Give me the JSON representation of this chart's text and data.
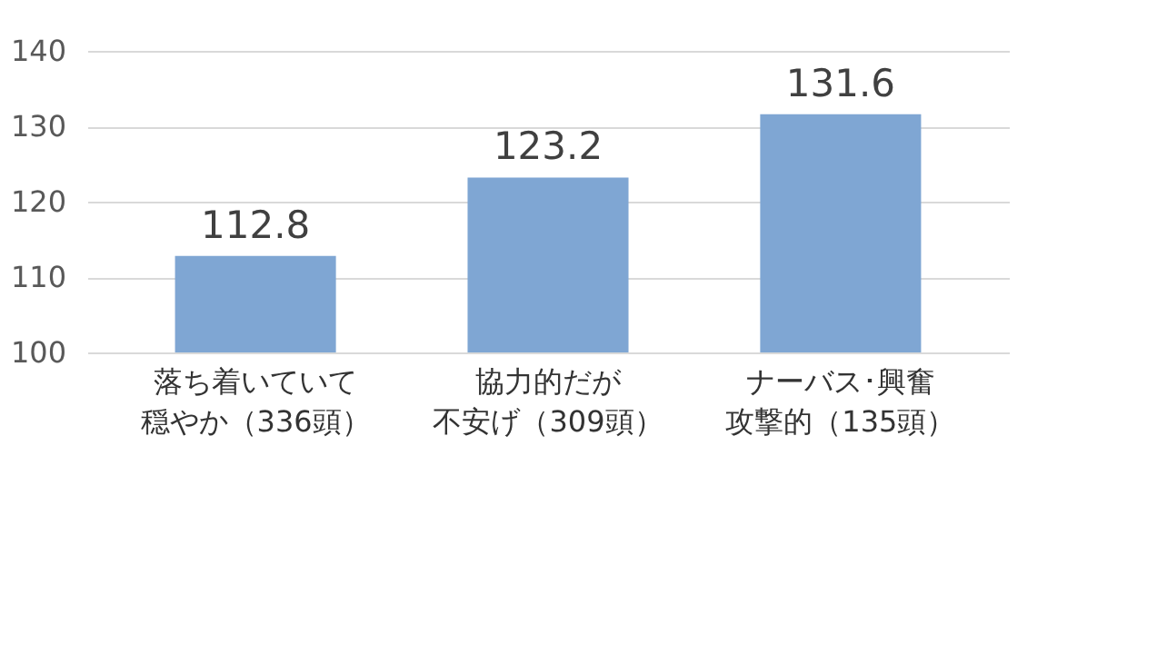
{
  "chart_data": {
    "type": "bar",
    "categories": [
      "落ち着いていて穏やか（336頭）",
      "協力的だが不安げ（309頭）",
      "ナーバス･興奮攻撃的（135頭）"
    ],
    "values": [
      112.8,
      123.2,
      131.6
    ],
    "color": "#7fa6d3",
    "ylim": [
      100,
      140
    ],
    "yticks": [
      100,
      110,
      120,
      130,
      140
    ],
    "grid": "y",
    "data_labels": true
  }
}
